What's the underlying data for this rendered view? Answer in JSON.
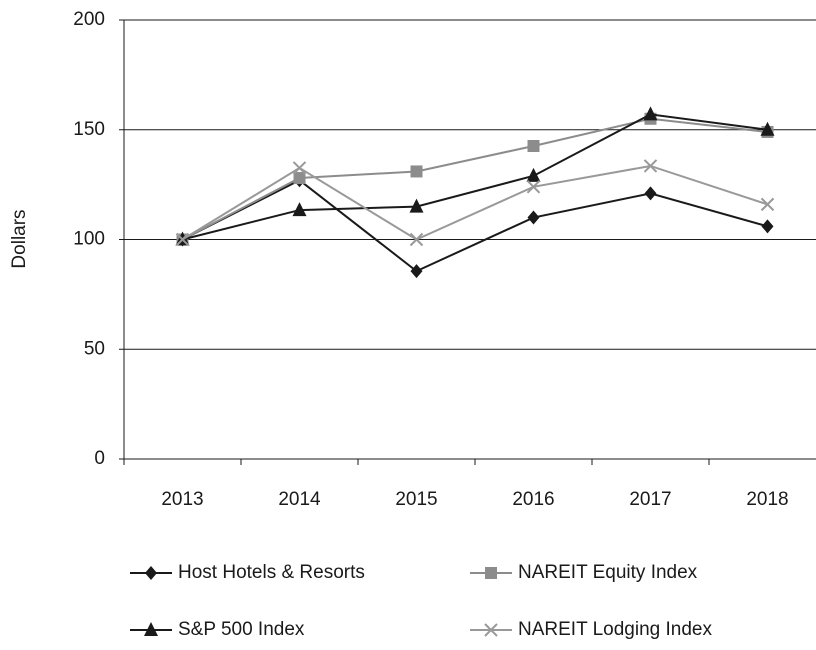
{
  "chart_data": {
    "type": "line",
    "y_label": "Dollars",
    "categories": [
      "2013",
      "2014",
      "2015",
      "2016",
      "2017",
      "2018"
    ],
    "series": [
      {
        "name": "Host Hotels & Resorts",
        "color": "#1a1a1a",
        "marker": "diamond",
        "values": [
          100,
          127,
          85.6,
          110,
          121,
          106
        ]
      },
      {
        "name": "NAREIT Equity Index",
        "color": "#8c8c8c",
        "marker": "square",
        "values": [
          100,
          128,
          131,
          142.6,
          155,
          149
        ]
      },
      {
        "name": "S&P 500 Index",
        "color": "#1a1a1a",
        "marker": "triangle",
        "values": [
          100,
          113.4,
          115,
          129,
          157,
          150
        ]
      },
      {
        "name": "NAREIT Lodging Index",
        "color": "#999999",
        "marker": "x",
        "values": [
          100,
          132.6,
          100,
          124,
          133.5,
          116
        ]
      }
    ],
    "ylim": [
      0,
      200
    ],
    "yticks": [
      0,
      50,
      100,
      150,
      200
    ],
    "grid": true
  }
}
